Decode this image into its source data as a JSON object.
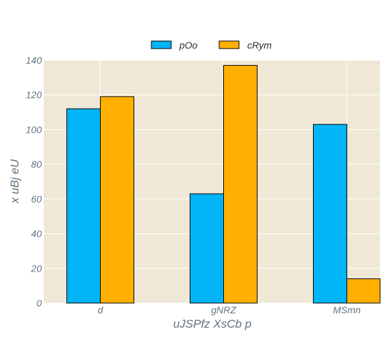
{
  "chart_data": {
    "type": "bar",
    "categories": [
      "d",
      "gNRZ",
      "MSmn"
    ],
    "series": [
      {
        "name": "pOo",
        "values": [
          112,
          63,
          103
        ],
        "color": "#00b4f5"
      },
      {
        "name": "cRym",
        "values": [
          119,
          137,
          14
        ],
        "color": "#ffb000"
      }
    ],
    "xlabel": "uJSPfz XsCb p",
    "ylabel": "x uBj eU",
    "ylim": [
      0,
      140
    ],
    "yticks": [
      0,
      20,
      40,
      60,
      80,
      100,
      120,
      140
    ],
    "grid": true,
    "legend_position": "top-center",
    "plot_background": "#efe8d6"
  }
}
